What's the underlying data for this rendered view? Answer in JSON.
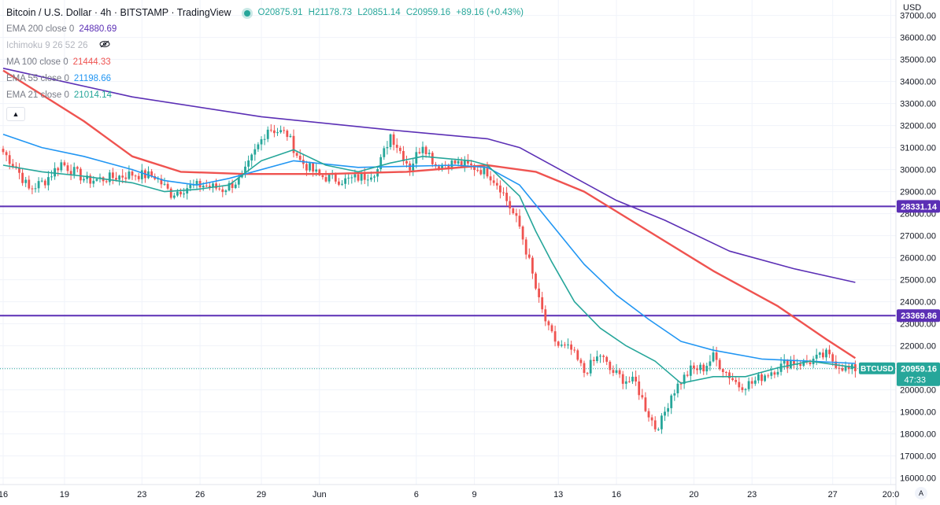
{
  "header": {
    "title": "Bitcoin / U.S. Dollar · 4h · BITSTAMP · TradingView",
    "ohlc": {
      "o": "O20875.91",
      "h": "H21178.73",
      "l": "L20851.14",
      "c": "C20959.16",
      "chg": "+89.16 (+0.43%)"
    }
  },
  "indicators": [
    {
      "label": "EMA 200 close 0",
      "value": "24880.69",
      "color": "#5b2fb5"
    },
    {
      "label": "Ichimoku 9 26 52 26",
      "value": "",
      "color": "#b2a6d4"
    },
    {
      "label": "MA 100 close 0",
      "value": "21444.33",
      "color": "#ef5350"
    },
    {
      "label": "EMA 55 close 0",
      "value": "21198.66",
      "color": "#2196f3"
    },
    {
      "label": "EMA 21 close 0",
      "value": "21014.14",
      "color": "#26a69a"
    }
  ],
  "price_axis": {
    "currency": "USD",
    "ticks": [
      "37000.00",
      "36000.00",
      "35000.00",
      "34000.00",
      "33000.00",
      "32000.00",
      "31000.00",
      "30000.00",
      "29000.00",
      "28000.00",
      "27000.00",
      "26000.00",
      "25000.00",
      "24000.00",
      "23000.00",
      "22000.00",
      "21000.00",
      "20000.00",
      "19000.00",
      "18000.00",
      "17000.00",
      "16000.00"
    ]
  },
  "time_axis": {
    "labels": [
      "16",
      "19",
      "23",
      "26",
      "29",
      "Jun",
      "6",
      "9",
      "13",
      "16",
      "20",
      "23",
      "27",
      "20:0"
    ]
  },
  "levels": [
    {
      "price": 28331.14,
      "label": "28331.14",
      "color": "#5b2fb5"
    },
    {
      "price": 23369.86,
      "label": "23369.86",
      "color": "#5b2fb5"
    }
  ],
  "last_price": {
    "symbol": "BTCUSD",
    "price": "20959.16",
    "countdown": "47:33",
    "color": "#26a69a"
  },
  "auto_label": "A",
  "chart_data": {
    "type": "candlestick",
    "title": "Bitcoin / U.S. Dollar · 4h · BITSTAMP",
    "ylim": [
      15700,
      37700
    ],
    "x_labels": [
      "16",
      "19",
      "23",
      "26",
      "29",
      "Jun",
      "6",
      "9",
      "13",
      "16",
      "20",
      "23",
      "27",
      "20:0"
    ],
    "anchors": [
      [
        0,
        30800
      ],
      [
        4,
        30100
      ],
      [
        8,
        29100
      ],
      [
        13,
        29500
      ],
      [
        18,
        30300
      ],
      [
        26,
        29500
      ],
      [
        32,
        29600
      ],
      [
        40,
        29800
      ],
      [
        47,
        29700
      ],
      [
        52,
        28900
      ],
      [
        57,
        29200
      ],
      [
        62,
        29300
      ],
      [
        68,
        29100
      ],
      [
        74,
        29600
      ],
      [
        78,
        30800
      ],
      [
        82,
        31900
      ],
      [
        88,
        31600
      ],
      [
        92,
        30400
      ],
      [
        98,
        29700
      ],
      [
        106,
        29500
      ],
      [
        112,
        29700
      ],
      [
        116,
        30000
      ],
      [
        120,
        31600
      ],
      [
        126,
        30100
      ],
      [
        130,
        31200
      ],
      [
        134,
        30200
      ],
      [
        140,
        30300
      ],
      [
        146,
        30100
      ],
      [
        150,
        29900
      ],
      [
        154,
        29200
      ],
      [
        157,
        28300
      ],
      [
        160,
        27400
      ],
      [
        163,
        25800
      ],
      [
        166,
        24000
      ],
      [
        169,
        22700
      ],
      [
        172,
        22000
      ],
      [
        176,
        21800
      ],
      [
        180,
        20800
      ],
      [
        185,
        21600
      ],
      [
        188,
        20900
      ],
      [
        192,
        20500
      ],
      [
        196,
        20300
      ],
      [
        199,
        19200
      ],
      [
        202,
        18300
      ],
      [
        204,
        18600
      ],
      [
        207,
        19800
      ],
      [
        210,
        20400
      ],
      [
        213,
        20900
      ],
      [
        217,
        21000
      ],
      [
        220,
        21500
      ],
      [
        224,
        20800
      ],
      [
        228,
        20200
      ],
      [
        232,
        20300
      ],
      [
        236,
        20700
      ],
      [
        240,
        21000
      ],
      [
        244,
        21300
      ],
      [
        248,
        21200
      ],
      [
        252,
        21400
      ],
      [
        255,
        21600
      ],
      [
        258,
        21200
      ],
      [
        262,
        20900
      ],
      [
        264,
        20959
      ]
    ],
    "series": [
      {
        "name": "EMA 200",
        "color": "#5b2fb5",
        "points": [
          [
            0,
            34600
          ],
          [
            40,
            33300
          ],
          [
            80,
            32400
          ],
          [
            120,
            31800
          ],
          [
            150,
            31400
          ],
          [
            160,
            31000
          ],
          [
            175,
            29800
          ],
          [
            190,
            28600
          ],
          [
            205,
            27700
          ],
          [
            225,
            26300
          ],
          [
            245,
            25500
          ],
          [
            264,
            24880
          ]
        ]
      },
      {
        "name": "MA 100",
        "color": "#ef5350",
        "points": [
          [
            0,
            34500
          ],
          [
            12,
            33400
          ],
          [
            25,
            32200
          ],
          [
            40,
            30600
          ],
          [
            55,
            29900
          ],
          [
            75,
            29800
          ],
          [
            100,
            29800
          ],
          [
            125,
            29900
          ],
          [
            150,
            30200
          ],
          [
            165,
            29900
          ],
          [
            180,
            29000
          ],
          [
            200,
            27200
          ],
          [
            220,
            25400
          ],
          [
            240,
            23800
          ],
          [
            255,
            22300
          ],
          [
            264,
            21444
          ]
        ]
      },
      {
        "name": "EMA 55",
        "color": "#2196f3",
        "points": [
          [
            0,
            31600
          ],
          [
            12,
            31000
          ],
          [
            25,
            30600
          ],
          [
            40,
            30000
          ],
          [
            50,
            29500
          ],
          [
            60,
            29300
          ],
          [
            70,
            29600
          ],
          [
            90,
            30400
          ],
          [
            110,
            30100
          ],
          [
            140,
            30200
          ],
          [
            150,
            30100
          ],
          [
            160,
            29300
          ],
          [
            170,
            27500
          ],
          [
            180,
            25700
          ],
          [
            190,
            24300
          ],
          [
            200,
            23200
          ],
          [
            210,
            22200
          ],
          [
            220,
            21800
          ],
          [
            235,
            21400
          ],
          [
            250,
            21300
          ],
          [
            264,
            21200
          ]
        ]
      },
      {
        "name": "EMA 21",
        "color": "#26a69a",
        "points": [
          [
            0,
            30200
          ],
          [
            12,
            29900
          ],
          [
            25,
            29700
          ],
          [
            40,
            29400
          ],
          [
            50,
            29000
          ],
          [
            60,
            29100
          ],
          [
            70,
            29300
          ],
          [
            80,
            30400
          ],
          [
            90,
            30900
          ],
          [
            100,
            30200
          ],
          [
            110,
            29900
          ],
          [
            120,
            30300
          ],
          [
            130,
            30600
          ],
          [
            145,
            30400
          ],
          [
            150,
            30200
          ],
          [
            160,
            28800
          ],
          [
            165,
            27200
          ],
          [
            170,
            25800
          ],
          [
            177,
            24000
          ],
          [
            185,
            22800
          ],
          [
            193,
            22000
          ],
          [
            202,
            21300
          ],
          [
            210,
            20300
          ],
          [
            220,
            20600
          ],
          [
            230,
            20600
          ],
          [
            240,
            21000
          ],
          [
            250,
            21300
          ],
          [
            264,
            21014
          ]
        ]
      }
    ]
  }
}
